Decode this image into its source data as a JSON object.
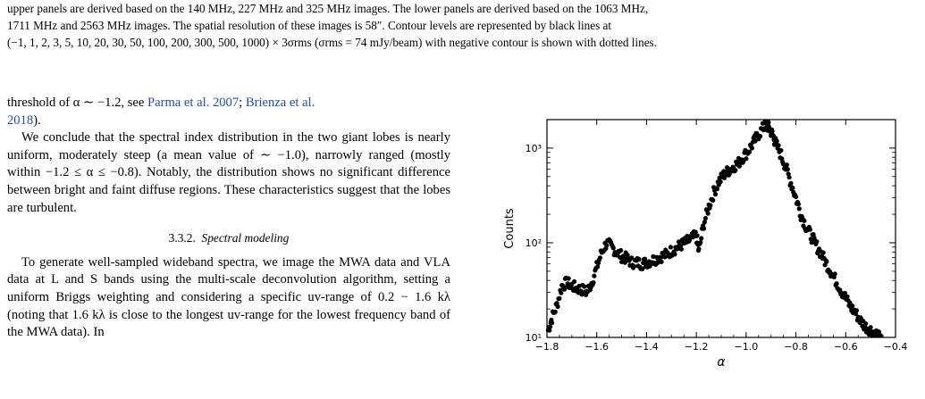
{
  "caption": {
    "line1": "upper panels are derived based on the 140 MHz, 227 MHz and 325 MHz images. The lower panels are derived based on the 1063 MHz,",
    "line2": "1711 MHz and 2563 MHz images.  The spatial resolution of these images is 58″.  Contour levels are represented by black lines at",
    "line3": "(−1, 1, 2, 3, 5, 10, 20, 30, 50, 100, 200, 300, 500, 1000) × 3σrms (σrms = 74 mJy/beam) with negative contour is shown with dotted lines."
  },
  "body": {
    "p1_start": "threshold of α ∼ −1.2, see ",
    "ref1": "Parma et al. 2007",
    "sep1": "; ",
    "ref2": "Brienza et al.",
    "ref2b": "2018",
    "p1_end": ").",
    "p2": "We conclude that the spectral index distribution in the two giant lobes is nearly uniform, moderately steep (a mean value of ∼ −1.0), narrowly ranged (mostly within −1.2 ≤ α ≤ −0.8). Notably, the distribution shows no significant difference between bright and faint diffuse regions. These characteristics suggest that the lobes are turbulent.",
    "subsection_number": "3.3.2.",
    "subsection_title": "Spectral modeling",
    "p3": "To generate well-sampled wideband spectra, we image the MWA data and VLA data at L and S bands using the multi-scale deconvolution algorithm, setting a uniform Briggs weighting and considering a specific uv-range of 0.2 − 1.6 kλ (noting that 1.6 kλ is close to the longest uv-range for the lowest frequency band of the MWA data). In"
  },
  "chart_data": {
    "type": "scatter",
    "xlabel": "α",
    "ylabel": "Counts",
    "xlim": [
      -1.8,
      -0.4
    ],
    "ylim": [
      10,
      2000
    ],
    "ylog": true,
    "xticks": [
      "−1.8",
      "−1.6",
      "−1.4",
      "−1.2",
      "−1.0",
      "−0.8",
      "−0.6",
      "−0.4"
    ],
    "yticks": [
      "10¹",
      "10²",
      "10³"
    ],
    "anchors": [
      [
        -1.795,
        12
      ],
      [
        -1.78,
        16
      ],
      [
        -1.76,
        22
      ],
      [
        -1.74,
        35
      ],
      [
        -1.72,
        38
      ],
      [
        -1.7,
        35
      ],
      [
        -1.68,
        33
      ],
      [
        -1.66,
        32
      ],
      [
        -1.64,
        30
      ],
      [
        -1.62,
        38
      ],
      [
        -1.6,
        55
      ],
      [
        -1.58,
        80
      ],
      [
        -1.56,
        100
      ],
      [
        -1.54,
        90
      ],
      [
        -1.52,
        80
      ],
      [
        -1.5,
        72
      ],
      [
        -1.48,
        68
      ],
      [
        -1.46,
        62
      ],
      [
        -1.44,
        62
      ],
      [
        -1.42,
        60
      ],
      [
        -1.4,
        62
      ],
      [
        -1.38,
        65
      ],
      [
        -1.36,
        68
      ],
      [
        -1.34,
        72
      ],
      [
        -1.32,
        75
      ],
      [
        -1.3,
        82
      ],
      [
        -1.28,
        88
      ],
      [
        -1.26,
        95
      ],
      [
        -1.24,
        102
      ],
      [
        -1.22,
        110
      ],
      [
        -1.2,
        120
      ],
      [
        -1.19,
        80
      ],
      [
        -1.17,
        160
      ],
      [
        -1.15,
        240
      ],
      [
        -1.13,
        340
      ],
      [
        -1.11,
        440
      ],
      [
        -1.09,
        520
      ],
      [
        -1.07,
        580
      ],
      [
        -1.05,
        640
      ],
      [
        -1.03,
        700
      ],
      [
        -1.01,
        820
      ],
      [
        -0.99,
        950
      ],
      [
        -0.97,
        1150
      ],
      [
        -0.95,
        1400
      ],
      [
        -0.93,
        1650
      ],
      [
        -0.92,
        1800
      ],
      [
        -0.91,
        1650
      ],
      [
        -0.9,
        1500
      ],
      [
        -0.89,
        1300
      ],
      [
        -0.88,
        1100
      ],
      [
        -0.86,
        850
      ],
      [
        -0.84,
        620
      ],
      [
        -0.82,
        430
      ],
      [
        -0.8,
        300
      ],
      [
        -0.78,
        200
      ],
      [
        -0.76,
        150
      ],
      [
        -0.74,
        120
      ],
      [
        -0.72,
        95
      ],
      [
        -0.7,
        78
      ],
      [
        -0.68,
        62
      ],
      [
        -0.66,
        50
      ],
      [
        -0.64,
        40
      ],
      [
        -0.62,
        32
      ],
      [
        -0.6,
        26
      ],
      [
        -0.58,
        21
      ],
      [
        -0.56,
        18
      ],
      [
        -0.54,
        15
      ],
      [
        -0.52,
        13
      ],
      [
        -0.5,
        12
      ],
      [
        -0.48,
        11
      ],
      [
        -0.46,
        10.5
      ]
    ]
  }
}
